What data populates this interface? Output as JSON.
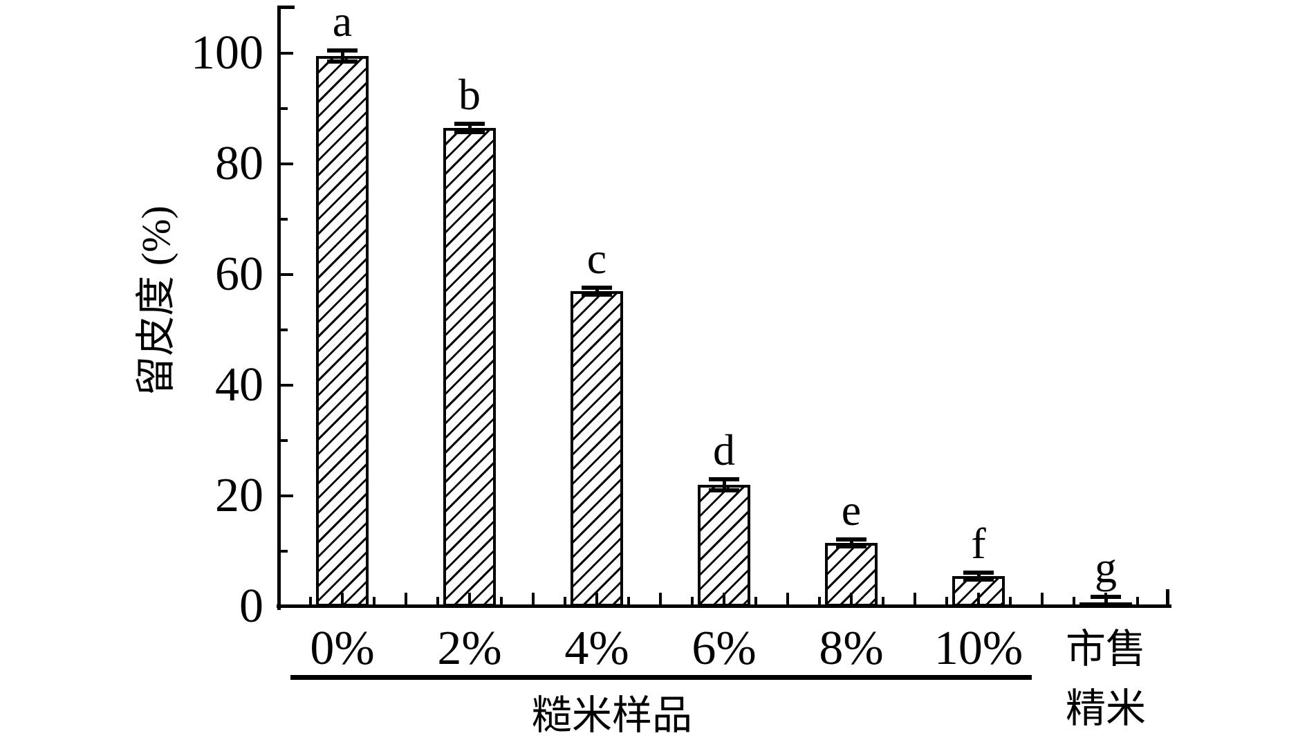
{
  "figure": {
    "background": "#ffffff",
    "foreground": "#000000"
  },
  "chart_data": {
    "type": "bar",
    "title": "",
    "ylabel": "留皮度 (%)",
    "xlabel": "",
    "x_group_label": "糙米样品",
    "categories": [
      "0%",
      "2%",
      "4%",
      "6%",
      "8%",
      "10%",
      "市售\n精米"
    ],
    "values": [
      99.5,
      86.5,
      57,
      22,
      11.5,
      5.5,
      0.8
    ],
    "errors": [
      1.0,
      0.8,
      0.6,
      1.0,
      0.6,
      0.6,
      0.9
    ],
    "sig_letters": [
      "a",
      "b",
      "c",
      "d",
      "e",
      "f",
      "g"
    ],
    "ylim": [
      0,
      108
    ],
    "yticks_major": [
      0,
      20,
      40,
      60,
      80,
      100
    ],
    "yticks_minor": [
      10,
      30,
      50,
      70,
      90
    ],
    "grid": false,
    "legend_position": "none",
    "group_span": {
      "from": 0,
      "to": 5
    },
    "bar_style": {
      "fill": "#ffffff",
      "hatch": "diagonal-forward",
      "hatch_color": "#000000",
      "border_color": "#000000"
    },
    "colors": {
      "axis": "#000000",
      "background": "#ffffff"
    }
  }
}
